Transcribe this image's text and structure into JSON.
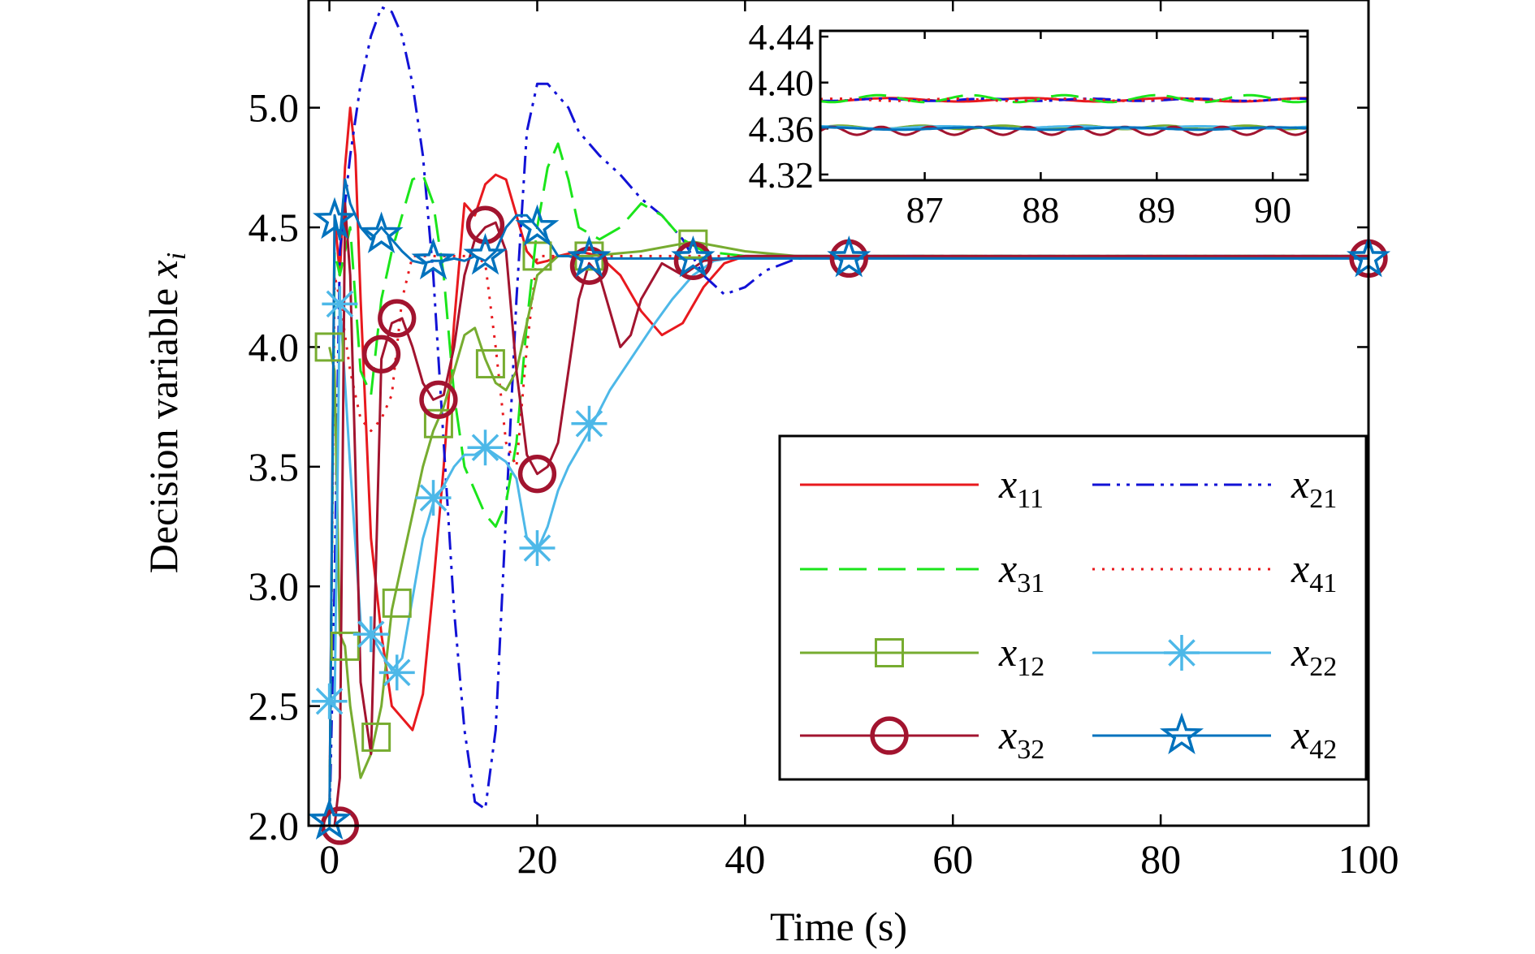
{
  "chart_data": [
    {
      "type": "line",
      "xlabel": "Time (s)",
      "ylabel_text": "Decision variable ",
      "ylabel_var": "x",
      "ylabel_sub": "i",
      "xlim": [
        -2,
        100
      ],
      "ylim": [
        2.0,
        5.45
      ],
      "xticks": [
        0,
        20,
        40,
        60,
        80,
        100
      ],
      "xtick_labels": [
        "0",
        "20",
        "40",
        "60",
        "80",
        "100"
      ],
      "yticks": [
        2.0,
        2.5,
        3.0,
        3.5,
        4.0,
        4.5,
        5.0
      ],
      "ytick_labels": [
        "2.0",
        "2.5",
        "3.0",
        "3.5",
        "4.0",
        "4.5",
        "5.0"
      ],
      "legend_placement": "lower-right",
      "legend_columns": 2,
      "series": [
        {
          "name": "x11",
          "var": "x",
          "sub": "11",
          "color": "#e8191e",
          "dash": "",
          "marker": "none",
          "x": [
            0,
            0.5,
            1,
            1.5,
            2,
            2.5,
            3,
            4,
            5,
            6,
            7,
            8,
            9,
            10,
            11,
            12,
            13,
            14,
            15,
            16,
            17,
            18,
            19,
            20,
            21,
            22,
            24,
            26,
            28,
            30,
            32,
            34,
            36,
            38,
            40,
            45,
            50,
            60,
            70,
            80,
            90,
            100
          ],
          "y": [
            2.0,
            4.55,
            4.3,
            4.75,
            5.0,
            4.8,
            4.2,
            3.2,
            2.8,
            2.5,
            2.45,
            2.4,
            2.55,
            3.0,
            3.5,
            4.1,
            4.6,
            4.55,
            4.68,
            4.72,
            4.7,
            4.55,
            4.4,
            4.35,
            4.36,
            4.38,
            4.4,
            4.38,
            4.3,
            4.15,
            4.05,
            4.1,
            4.25,
            4.35,
            4.38,
            4.38,
            4.38,
            4.38,
            4.38,
            4.38,
            4.38,
            4.38
          ]
        },
        {
          "name": "x21",
          "var": "x",
          "sub": "21",
          "color": "#1212d6",
          "dash": "22 8 4 8 4 8",
          "marker": "none",
          "x": [
            0,
            0.5,
            1,
            2,
            3,
            4,
            5,
            6,
            7,
            8,
            9,
            10,
            11,
            12,
            13,
            14,
            15,
            16,
            17,
            18,
            19,
            20,
            21,
            22,
            23,
            24,
            26,
            28,
            30,
            32,
            34,
            36,
            38,
            40,
            42,
            45,
            50,
            60,
            70,
            80,
            90,
            100
          ],
          "y": [
            2.0,
            3.0,
            4.4,
            4.8,
            5.1,
            5.3,
            5.42,
            5.4,
            5.3,
            5.1,
            4.8,
            4.3,
            3.6,
            2.9,
            2.4,
            2.1,
            2.07,
            2.4,
            3.3,
            4.2,
            4.9,
            5.1,
            5.1,
            5.05,
            5.0,
            4.9,
            4.8,
            4.72,
            4.62,
            4.55,
            4.45,
            4.3,
            4.22,
            4.25,
            4.32,
            4.37,
            4.38,
            4.38,
            4.38,
            4.38,
            4.38,
            4.38
          ]
        },
        {
          "name": "x31",
          "var": "x",
          "sub": "31",
          "color": "#1be51b",
          "dash": "34 14",
          "marker": "none",
          "x": [
            0,
            0.5,
            1,
            2,
            3,
            4,
            5,
            6,
            7,
            8,
            9,
            10,
            11,
            12,
            13,
            14,
            15,
            16,
            17,
            18,
            19,
            20,
            21,
            22,
            23,
            24,
            26,
            28,
            30,
            32,
            34,
            36,
            40,
            45,
            50,
            60,
            70,
            80,
            90,
            100
          ],
          "y": [
            2.0,
            4.4,
            4.3,
            4.5,
            3.9,
            3.8,
            4.2,
            4.4,
            4.55,
            4.7,
            4.72,
            4.6,
            4.3,
            3.8,
            3.5,
            3.4,
            3.3,
            3.25,
            3.35,
            3.6,
            4.1,
            4.5,
            4.75,
            4.85,
            4.7,
            4.5,
            4.45,
            4.5,
            4.6,
            4.55,
            4.45,
            4.4,
            4.38,
            4.38,
            4.38,
            4.38,
            4.38,
            4.38,
            4.38,
            4.38
          ]
        },
        {
          "name": "x41",
          "var": "x",
          "sub": "41",
          "color": "#e8191e",
          "dash": "3 9",
          "marker": "none",
          "x": [
            0,
            0.5,
            1,
            2,
            3,
            4,
            5,
            6,
            7,
            8,
            9,
            10,
            11,
            12,
            13,
            14,
            15,
            16,
            17,
            18,
            19,
            20,
            22,
            25,
            30,
            35,
            40,
            50,
            60,
            70,
            80,
            90,
            100
          ],
          "y": [
            2.0,
            4.3,
            4.2,
            3.9,
            3.7,
            3.65,
            3.7,
            3.8,
            4.2,
            4.38,
            4.38,
            4.38,
            4.38,
            4.38,
            4.38,
            4.38,
            4.35,
            4.0,
            3.6,
            3.5,
            4.0,
            4.38,
            4.38,
            4.38,
            4.38,
            4.38,
            4.38,
            4.38,
            4.38,
            4.38,
            4.38,
            4.38,
            4.38
          ]
        },
        {
          "name": "x12",
          "var": "x",
          "sub": "12",
          "color": "#77ac30",
          "dash": "",
          "marker": "square",
          "x": [
            0,
            0.5,
            1,
            1.5,
            2,
            3,
            4,
            5,
            6,
            7,
            8,
            9,
            10,
            11,
            12,
            13,
            14,
            15,
            16,
            17,
            18,
            19,
            20,
            22,
            25,
            30,
            35,
            40,
            45,
            50,
            60,
            70,
            80,
            90,
            100
          ],
          "y": [
            4.0,
            3.9,
            2.8,
            2.75,
            2.5,
            2.2,
            2.3,
            2.5,
            2.9,
            3.1,
            3.3,
            3.5,
            3.65,
            3.75,
            3.9,
            4.05,
            4.08,
            3.95,
            3.85,
            3.82,
            3.9,
            4.1,
            4.3,
            4.38,
            4.38,
            4.4,
            4.44,
            4.4,
            4.38,
            4.38,
            4.38,
            4.38,
            4.38,
            4.38,
            4.38
          ],
          "markers_x": [
            0,
            1.5,
            6.5,
            4.5,
            10.5,
            15.5,
            20,
            25,
            35
          ],
          "markers_y": [
            4.0,
            2.75,
            2.93,
            2.37,
            3.68,
            3.93,
            4.38,
            4.38,
            4.43
          ]
        },
        {
          "name": "x22",
          "var": "x",
          "sub": "22",
          "color": "#4db8e8",
          "dash": "",
          "marker": "asterisk",
          "x": [
            0,
            0.5,
            1,
            2,
            3,
            4,
            5,
            6,
            7,
            8,
            9,
            10,
            11,
            12,
            13,
            14,
            15,
            16,
            17,
            18,
            19,
            20,
            21,
            22,
            23,
            25,
            27,
            29,
            31,
            33,
            35,
            37,
            40,
            45,
            50,
            60,
            70,
            80,
            90,
            100
          ],
          "y": [
            2.5,
            2.5,
            4.2,
            3.5,
            2.85,
            2.8,
            2.72,
            2.65,
            2.7,
            2.95,
            3.2,
            3.35,
            3.42,
            3.5,
            3.55,
            3.55,
            3.58,
            3.55,
            3.52,
            3.45,
            3.2,
            3.15,
            3.25,
            3.4,
            3.5,
            3.65,
            3.82,
            3.95,
            4.08,
            4.2,
            4.3,
            4.36,
            4.38,
            4.38,
            4.38,
            4.38,
            4.38,
            4.38,
            4.38,
            4.38
          ],
          "markers_x": [
            0,
            1,
            4,
            6.5,
            10,
            15,
            20,
            25
          ],
          "markers_y": [
            2.52,
            4.18,
            2.8,
            2.64,
            3.37,
            3.58,
            3.16,
            3.68
          ]
        },
        {
          "name": "x32",
          "var": "x",
          "sub": "32",
          "color": "#a2142f",
          "dash": "",
          "marker": "circle",
          "x": [
            0,
            0.5,
            1,
            1.5,
            2,
            2.5,
            3,
            4,
            5,
            6,
            7,
            8,
            9,
            10,
            11,
            12,
            13,
            14,
            15,
            16,
            17,
            18,
            19,
            20,
            21,
            22,
            23,
            24,
            25,
            26,
            27,
            28,
            29,
            30,
            32,
            34,
            35,
            36,
            38,
            40,
            45,
            50,
            60,
            70,
            80,
            90,
            100
          ],
          "y": [
            2.0,
            2.0,
            2.2,
            4.6,
            4.3,
            3.5,
            2.6,
            2.3,
            3.95,
            4.1,
            4.12,
            4.0,
            3.85,
            3.78,
            3.8,
            4.0,
            4.3,
            4.45,
            4.5,
            4.52,
            4.4,
            3.9,
            3.55,
            3.47,
            3.5,
            3.6,
            3.9,
            4.2,
            4.35,
            4.3,
            4.15,
            4.0,
            4.05,
            4.2,
            4.35,
            4.3,
            4.33,
            4.36,
            4.37,
            4.38,
            4.38,
            4.38,
            4.38,
            4.38,
            4.38,
            4.38,
            4.38
          ],
          "markers_x": [
            1,
            5,
            6.5,
            10.5,
            15,
            20,
            25,
            35,
            50,
            100
          ],
          "markers_y": [
            2.0,
            3.97,
            4.12,
            3.78,
            4.51,
            3.47,
            4.34,
            4.36,
            4.37,
            4.37
          ]
        },
        {
          "name": "x42",
          "var": "x",
          "sub": "42",
          "color": "#0072bd",
          "dash": "",
          "marker": "star",
          "x": [
            0,
            0.5,
            1,
            1.5,
            2,
            2.5,
            3,
            4,
            5,
            6,
            7,
            8,
            9,
            10,
            11,
            12,
            13,
            14,
            15,
            16,
            17,
            18,
            19,
            20,
            21,
            22,
            23,
            24,
            25,
            30,
            35,
            40,
            50,
            60,
            70,
            80,
            90,
            100
          ],
          "y": [
            2.0,
            4.55,
            4.45,
            4.7,
            4.6,
            4.55,
            4.5,
            4.45,
            4.5,
            4.45,
            4.4,
            4.36,
            4.35,
            4.36,
            4.36,
            4.37,
            4.36,
            4.38,
            4.36,
            4.4,
            4.5,
            4.55,
            4.55,
            4.5,
            4.45,
            4.38,
            4.38,
            4.37,
            4.37,
            4.37,
            4.37,
            4.37,
            4.37,
            4.37,
            4.37,
            4.37,
            4.37,
            4.37
          ],
          "markers_x": [
            0,
            0.5,
            5,
            10,
            15,
            20,
            25,
            35,
            50,
            100
          ],
          "markers_y": [
            2.02,
            4.53,
            4.47,
            4.36,
            4.38,
            4.5,
            4.37,
            4.37,
            4.37,
            4.37
          ]
        }
      ]
    },
    {
      "type": "line",
      "role": "inset",
      "xlim": [
        86.1,
        90.3
      ],
      "ylim": [
        4.315,
        4.445
      ],
      "xticks": [
        87,
        88,
        89,
        90
      ],
      "xtick_labels": [
        "87",
        "88",
        "89",
        "90"
      ],
      "yticks": [
        4.32,
        4.36,
        4.4,
        4.44
      ],
      "ytick_labels": [
        "4.32",
        "4.36",
        "4.40",
        "4.44"
      ],
      "series": [
        {
          "name": "x11",
          "color": "#e8191e",
          "dash": "",
          "level": 4.385,
          "amp": 0.0015,
          "period": 1.2
        },
        {
          "name": "x21",
          "color": "#1212d6",
          "dash": "22 8 4 8",
          "level": 4.385,
          "amp": 0.001,
          "period": 0.9
        },
        {
          "name": "x31",
          "color": "#1be51b",
          "dash": "34 14",
          "level": 4.386,
          "amp": 0.003,
          "period": 0.8
        },
        {
          "name": "x41",
          "color": "#e8191e",
          "dash": "3 9",
          "level": 4.385,
          "amp": 0.001,
          "period": 1.0
        },
        {
          "name": "x12",
          "color": "#77ac30",
          "dash": "",
          "level": 4.361,
          "amp": 0.0015,
          "period": 0.7
        },
        {
          "name": "x22",
          "color": "#4db8e8",
          "dash": "",
          "level": 4.361,
          "amp": 0.001,
          "period": 1.1
        },
        {
          "name": "x32",
          "color": "#a2142f",
          "dash": "",
          "level": 4.358,
          "amp": 0.0035,
          "period": 0.42
        },
        {
          "name": "x42",
          "color": "#0072bd",
          "dash": "",
          "level": 4.36,
          "amp": 0.001,
          "period": 1.3
        }
      ]
    }
  ]
}
